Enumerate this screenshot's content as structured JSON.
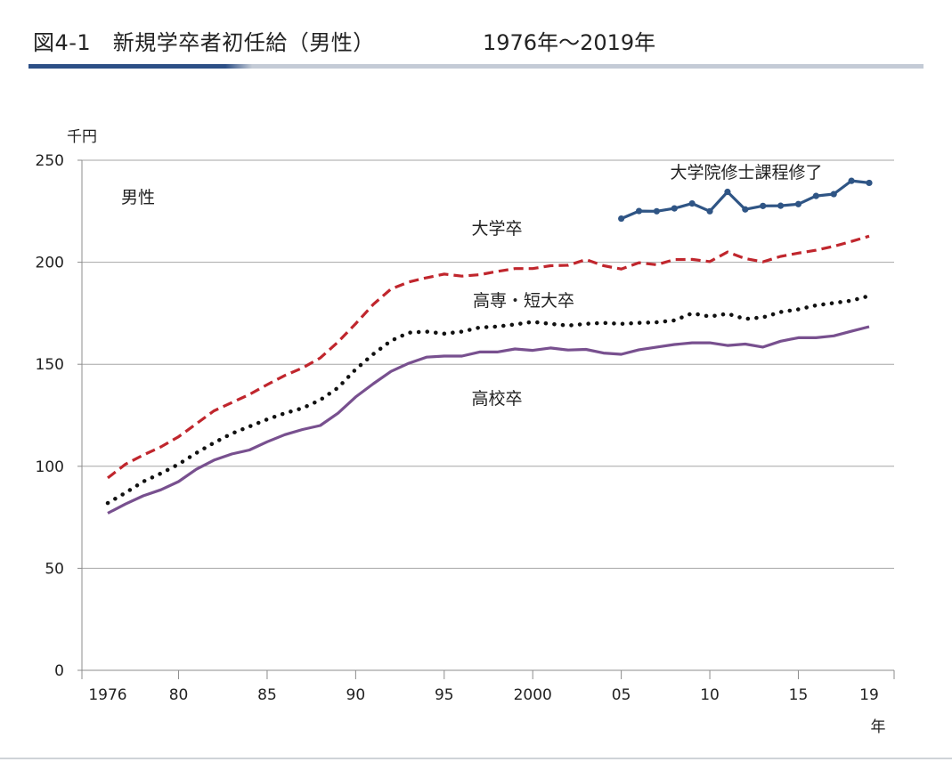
{
  "header": {
    "title": "図4-1　新規学卒者初任給（男性）",
    "range": "1976年～2019年"
  },
  "chart_data": {
    "type": "line",
    "ylabel": "千円",
    "xlabel": "年",
    "ylim": [
      0,
      250
    ],
    "yticks": [
      0,
      50,
      100,
      150,
      200,
      250
    ],
    "xlim": [
      1976,
      2019
    ],
    "xticks": [
      {
        "value": 1976,
        "label": "1976"
      },
      {
        "value": 1980,
        "label": "80"
      },
      {
        "value": 1985,
        "label": "85"
      },
      {
        "value": 1990,
        "label": "90"
      },
      {
        "value": 1995,
        "label": "95"
      },
      {
        "value": 2000,
        "label": "2000"
      },
      {
        "value": 2005,
        "label": "05"
      },
      {
        "value": 2010,
        "label": "10"
      },
      {
        "value": 2015,
        "label": "15"
      },
      {
        "value": 2019,
        "label": "19"
      }
    ],
    "grid": true,
    "annotation": "男性",
    "series": [
      {
        "name": "大学院修士課程修了",
        "color": "#2f5585",
        "style": "solid-markers",
        "x": [
          2005,
          2006,
          2007,
          2008,
          2009,
          2010,
          2011,
          2012,
          2013,
          2014,
          2015,
          2016,
          2017,
          2018,
          2019
        ],
        "values": [
          221.4,
          225.1,
          225.0,
          226.4,
          228.8,
          225.0,
          234.5,
          225.9,
          227.6,
          227.7,
          228.5,
          232.5,
          233.4,
          239.9,
          238.9
        ]
      },
      {
        "name": "大学卒",
        "color": "#c0262d",
        "style": "dashed",
        "x": [
          1976,
          1977,
          1978,
          1979,
          1980,
          1981,
          1982,
          1983,
          1984,
          1985,
          1986,
          1987,
          1988,
          1989,
          1990,
          1991,
          1992,
          1993,
          1994,
          1995,
          1996,
          1997,
          1998,
          1999,
          2000,
          2001,
          2002,
          2003,
          2004,
          2005,
          2006,
          2007,
          2008,
          2009,
          2010,
          2011,
          2012,
          2013,
          2014,
          2015,
          2016,
          2017,
          2018,
          2019
        ],
        "values": [
          94.3,
          101.0,
          105.5,
          109.5,
          114.5,
          120.8,
          127.2,
          131.2,
          135.2,
          140.0,
          144.5,
          148.2,
          153.1,
          160.9,
          169.9,
          179.4,
          186.9,
          190.3,
          192.4,
          194.2,
          193.2,
          193.9,
          195.5,
          196.9,
          196.9,
          198.3,
          198.5,
          201.3,
          198.3,
          196.7,
          199.8,
          198.8,
          201.3,
          201.4,
          200.3,
          205.0,
          201.8,
          200.2,
          202.9,
          204.5,
          205.9,
          207.8,
          210.2,
          212.8
        ]
      },
      {
        "name": "高専・短大卒",
        "color": "#111111",
        "style": "dotted",
        "x": [
          1976,
          1977,
          1978,
          1979,
          1980,
          1981,
          1982,
          1983,
          1984,
          1985,
          1986,
          1987,
          1988,
          1989,
          1990,
          1991,
          1992,
          1993,
          1994,
          1995,
          1996,
          1997,
          1998,
          1999,
          2000,
          2001,
          2002,
          2003,
          2004,
          2005,
          2006,
          2007,
          2008,
          2009,
          2010,
          2011,
          2012,
          2013,
          2014,
          2015,
          2016,
          2017,
          2018,
          2019
        ],
        "values": [
          82.0,
          87.0,
          92.5,
          96.5,
          101.0,
          106.5,
          111.5,
          116.0,
          119.5,
          123.0,
          126.0,
          128.5,
          132.5,
          138.5,
          147.5,
          155.0,
          161.5,
          165.5,
          166.0,
          165.0,
          166.0,
          168.0,
          168.5,
          169.5,
          170.8,
          169.8,
          169.0,
          169.8,
          170.3,
          169.8,
          170.3,
          170.6,
          171.5,
          175.0,
          173.4,
          174.8,
          172.2,
          173.0,
          175.6,
          176.9,
          178.9,
          180.0,
          181.2,
          183.5
        ]
      },
      {
        "name": "高校卒",
        "color": "#78508f",
        "style": "solid",
        "x": [
          1976,
          1977,
          1978,
          1979,
          1980,
          1981,
          1982,
          1983,
          1984,
          1985,
          1986,
          1987,
          1988,
          1989,
          1990,
          1991,
          1992,
          1993,
          1994,
          1995,
          1996,
          1997,
          1998,
          1999,
          2000,
          2001,
          2002,
          2003,
          2004,
          2005,
          2006,
          2007,
          2008,
          2009,
          2010,
          2011,
          2012,
          2013,
          2014,
          2015,
          2016,
          2017,
          2018,
          2019
        ],
        "values": [
          77.0,
          81.5,
          85.5,
          88.5,
          92.5,
          98.5,
          103.0,
          106.0,
          108.0,
          112.0,
          115.5,
          118.0,
          120.0,
          126.0,
          134.0,
          140.5,
          146.5,
          150.5,
          153.5,
          154.0,
          154.0,
          156.0,
          156.0,
          157.5,
          156.8,
          158.0,
          157.0,
          157.3,
          155.5,
          154.9,
          157.1,
          158.4,
          159.7,
          160.5,
          160.5,
          159.2,
          159.9,
          158.4,
          161.3,
          163.0,
          163.0,
          163.9,
          166.2,
          168.4
        ]
      }
    ],
    "series_labels": [
      "大学院修士課程修了",
      "大学卒",
      "高専・短大卒",
      "高校卒"
    ]
  }
}
